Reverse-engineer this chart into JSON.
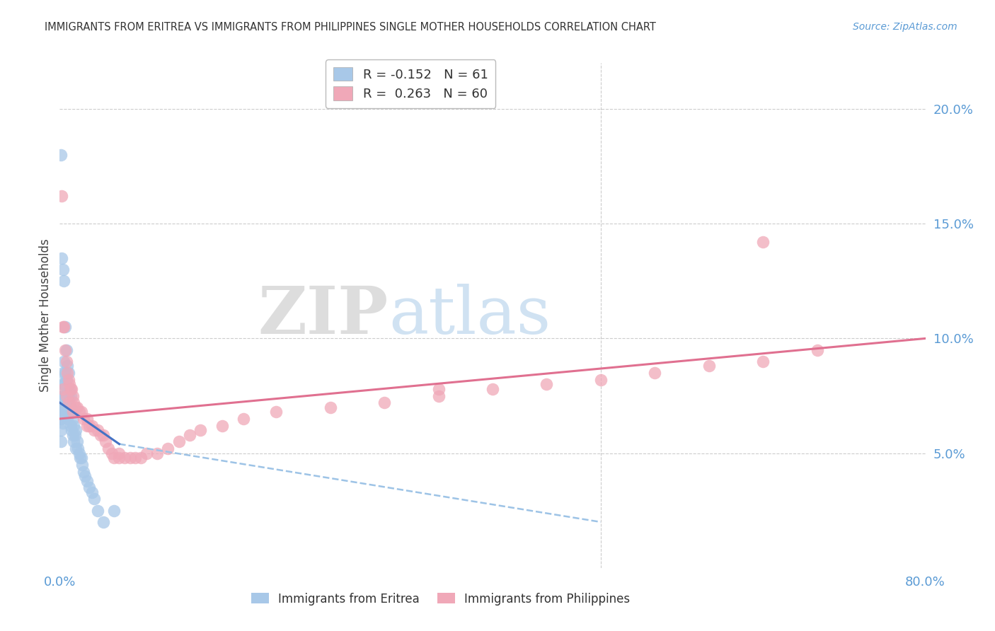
{
  "title": "IMMIGRANTS FROM ERITREA VS IMMIGRANTS FROM PHILIPPINES SINGLE MOTHER HOUSEHOLDS CORRELATION CHART",
  "source": "Source: ZipAtlas.com",
  "ylabel": "Single Mother Households",
  "legend1_color": "#a8c8e8",
  "legend2_color": "#f0a8b8",
  "legend1_label": "Immigrants from Eritrea",
  "legend2_label": "Immigrants from Philippines",
  "R1": -0.152,
  "N1": 61,
  "R2": 0.263,
  "N2": 60,
  "xlim": [
    0.0,
    0.8
  ],
  "ylim": [
    0.0,
    0.22
  ],
  "background_color": "#ffffff",
  "grid_color": "#cccccc",
  "title_color": "#333333",
  "axis_tick_color": "#5b9bd5",
  "blue_line_color": "#4472C4",
  "pink_line_color": "#E07090",
  "dash_line_color": "#9DC3E6",
  "eritrea_x": [
    0.001,
    0.001,
    0.001,
    0.001,
    0.002,
    0.002,
    0.002,
    0.002,
    0.002,
    0.003,
    0.003,
    0.003,
    0.003,
    0.003,
    0.004,
    0.004,
    0.004,
    0.004,
    0.005,
    0.005,
    0.005,
    0.005,
    0.006,
    0.006,
    0.006,
    0.007,
    0.007,
    0.007,
    0.008,
    0.008,
    0.008,
    0.009,
    0.009,
    0.01,
    0.01,
    0.01,
    0.011,
    0.011,
    0.012,
    0.012,
    0.013,
    0.013,
    0.014,
    0.015,
    0.015,
    0.016,
    0.017,
    0.018,
    0.019,
    0.02,
    0.021,
    0.022,
    0.023,
    0.025,
    0.027,
    0.03,
    0.032,
    0.035,
    0.04,
    0.001,
    0.05
  ],
  "eritrea_y": [
    0.18,
    0.07,
    0.065,
    0.06,
    0.135,
    0.08,
    0.075,
    0.07,
    0.065,
    0.13,
    0.085,
    0.075,
    0.068,
    0.063,
    0.125,
    0.09,
    0.08,
    0.07,
    0.105,
    0.085,
    0.075,
    0.07,
    0.095,
    0.082,
    0.072,
    0.088,
    0.075,
    0.065,
    0.085,
    0.075,
    0.067,
    0.078,
    0.068,
    0.075,
    0.07,
    0.062,
    0.068,
    0.06,
    0.065,
    0.058,
    0.062,
    0.055,
    0.058,
    0.06,
    0.052,
    0.055,
    0.052,
    0.05,
    0.048,
    0.048,
    0.045,
    0.042,
    0.04,
    0.038,
    0.035,
    0.033,
    0.03,
    0.025,
    0.02,
    0.055,
    0.025
  ],
  "philippines_x": [
    0.002,
    0.003,
    0.004,
    0.005,
    0.006,
    0.007,
    0.008,
    0.009,
    0.01,
    0.011,
    0.012,
    0.013,
    0.015,
    0.016,
    0.018,
    0.02,
    0.022,
    0.025,
    0.027,
    0.03,
    0.032,
    0.035,
    0.038,
    0.04,
    0.042,
    0.045,
    0.048,
    0.05,
    0.055,
    0.06,
    0.065,
    0.07,
    0.075,
    0.08,
    0.09,
    0.1,
    0.11,
    0.12,
    0.13,
    0.15,
    0.17,
    0.2,
    0.25,
    0.3,
    0.35,
    0.4,
    0.45,
    0.5,
    0.55,
    0.6,
    0.65,
    0.7,
    0.003,
    0.006,
    0.008,
    0.012,
    0.025,
    0.055,
    0.65,
    0.35
  ],
  "philippines_y": [
    0.162,
    0.105,
    0.105,
    0.095,
    0.09,
    0.085,
    0.082,
    0.08,
    0.078,
    0.078,
    0.075,
    0.072,
    0.07,
    0.07,
    0.068,
    0.068,
    0.065,
    0.065,
    0.062,
    0.062,
    0.06,
    0.06,
    0.058,
    0.058,
    0.055,
    0.052,
    0.05,
    0.048,
    0.048,
    0.048,
    0.048,
    0.048,
    0.048,
    0.05,
    0.05,
    0.052,
    0.055,
    0.058,
    0.06,
    0.062,
    0.065,
    0.068,
    0.07,
    0.072,
    0.075,
    0.078,
    0.08,
    0.082,
    0.085,
    0.088,
    0.09,
    0.095,
    0.078,
    0.075,
    0.072,
    0.068,
    0.062,
    0.05,
    0.142,
    0.078
  ],
  "watermark_zip_color": "#d8d8d8",
  "watermark_atlas_color": "#c8ddf0"
}
